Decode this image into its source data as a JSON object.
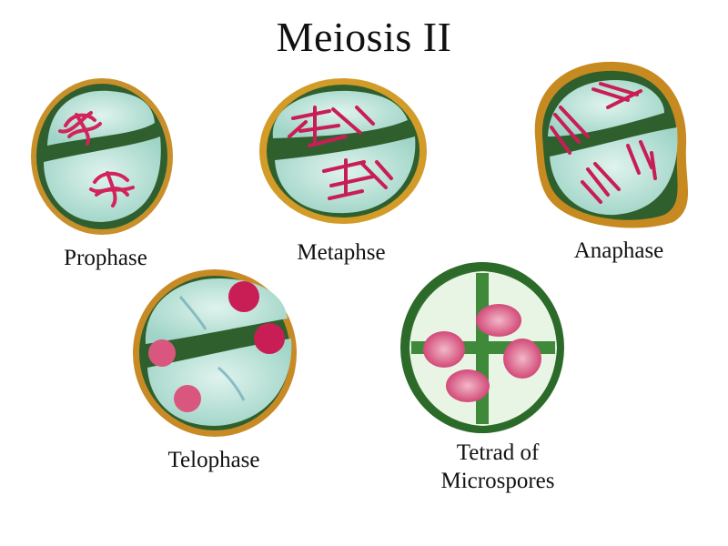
{
  "title": "Meiosis II",
  "stages": [
    {
      "name": "prophase",
      "label": "Prophase"
    },
    {
      "name": "metaphase",
      "label": "Metaphse"
    },
    {
      "name": "anaphase",
      "label": "Anaphase"
    },
    {
      "name": "telophase",
      "label": "Telophase"
    },
    {
      "name": "tetrad",
      "label": "Tetrad of\nMicrospores"
    }
  ],
  "colors": {
    "wall_outer": "#c88a1e",
    "wall_green": "#2f6b2c",
    "cytoplasm": "#bfe6dc",
    "chromosome": "#d0245a",
    "nucleus": "#e27fa0",
    "tetrad_wall": "#3f8a3a"
  }
}
